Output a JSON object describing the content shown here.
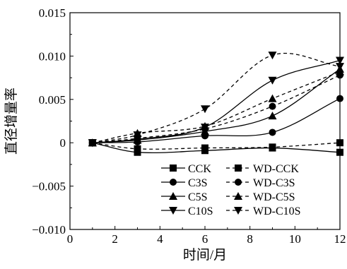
{
  "chart_data": {
    "type": "line",
    "xlabel": "时间/月",
    "ylabel": "直径增量率",
    "xlim": [
      0,
      12
    ],
    "ylim": [
      -0.01,
      0.015
    ],
    "x_ticks": [
      0,
      2,
      4,
      6,
      8,
      10,
      12
    ],
    "x_tick_labels": [
      "0",
      "2",
      "4",
      "6",
      "8",
      "10",
      "12"
    ],
    "y_ticks": [
      -0.01,
      -0.005,
      0,
      0.005,
      0.01,
      0.015
    ],
    "y_tick_labels": [
      "−0.010",
      "−0.005",
      "0",
      "0.005",
      "0.010",
      "0.015"
    ],
    "grid": false,
    "legend_position": "bottom-right",
    "x": [
      1,
      3,
      6,
      9,
      12
    ],
    "series": [
      {
        "name": "CCK",
        "marker": "square",
        "dash": "solid",
        "values": [
          0,
          -0.0011,
          -0.0009,
          -0.0006,
          -0.0011
        ]
      },
      {
        "name": "C3S",
        "marker": "circle",
        "dash": "solid",
        "values": [
          0,
          0.0001,
          0.0008,
          0.0012,
          0.0051
        ]
      },
      {
        "name": "C5S",
        "marker": "triangle-up",
        "dash": "solid",
        "values": [
          0,
          0.0003,
          0.0013,
          0.0031,
          0.0085
        ]
      },
      {
        "name": "C10S",
        "marker": "triangle-down",
        "dash": "solid",
        "values": [
          0,
          0.0004,
          0.0018,
          0.0072,
          0.0095
        ]
      },
      {
        "name": "WD-CCK",
        "marker": "square",
        "dash": "dashed",
        "values": [
          0,
          -0.0007,
          -0.0006,
          -0.0005,
          0.0
        ]
      },
      {
        "name": "WD-C3S",
        "marker": "circle",
        "dash": "dashed",
        "values": [
          0,
          0.0005,
          0.0016,
          0.0042,
          0.0078
        ]
      },
      {
        "name": "WD-C5S",
        "marker": "triangle-up",
        "dash": "dashed",
        "values": [
          0,
          0.0011,
          0.0019,
          0.0051,
          0.0082
        ]
      },
      {
        "name": "WD-C10S",
        "marker": "triangle-down",
        "dash": "dashed",
        "values": [
          0,
          0.0009,
          0.0039,
          0.0101,
          0.0088
        ]
      }
    ],
    "legend_rows": [
      [
        "CCK",
        "WD-CCK"
      ],
      [
        "C3S",
        "WD-C3S"
      ],
      [
        "C5S",
        "WD-C5S"
      ],
      [
        "C10S",
        "WD-C10S"
      ]
    ],
    "line_color": "#000000"
  }
}
